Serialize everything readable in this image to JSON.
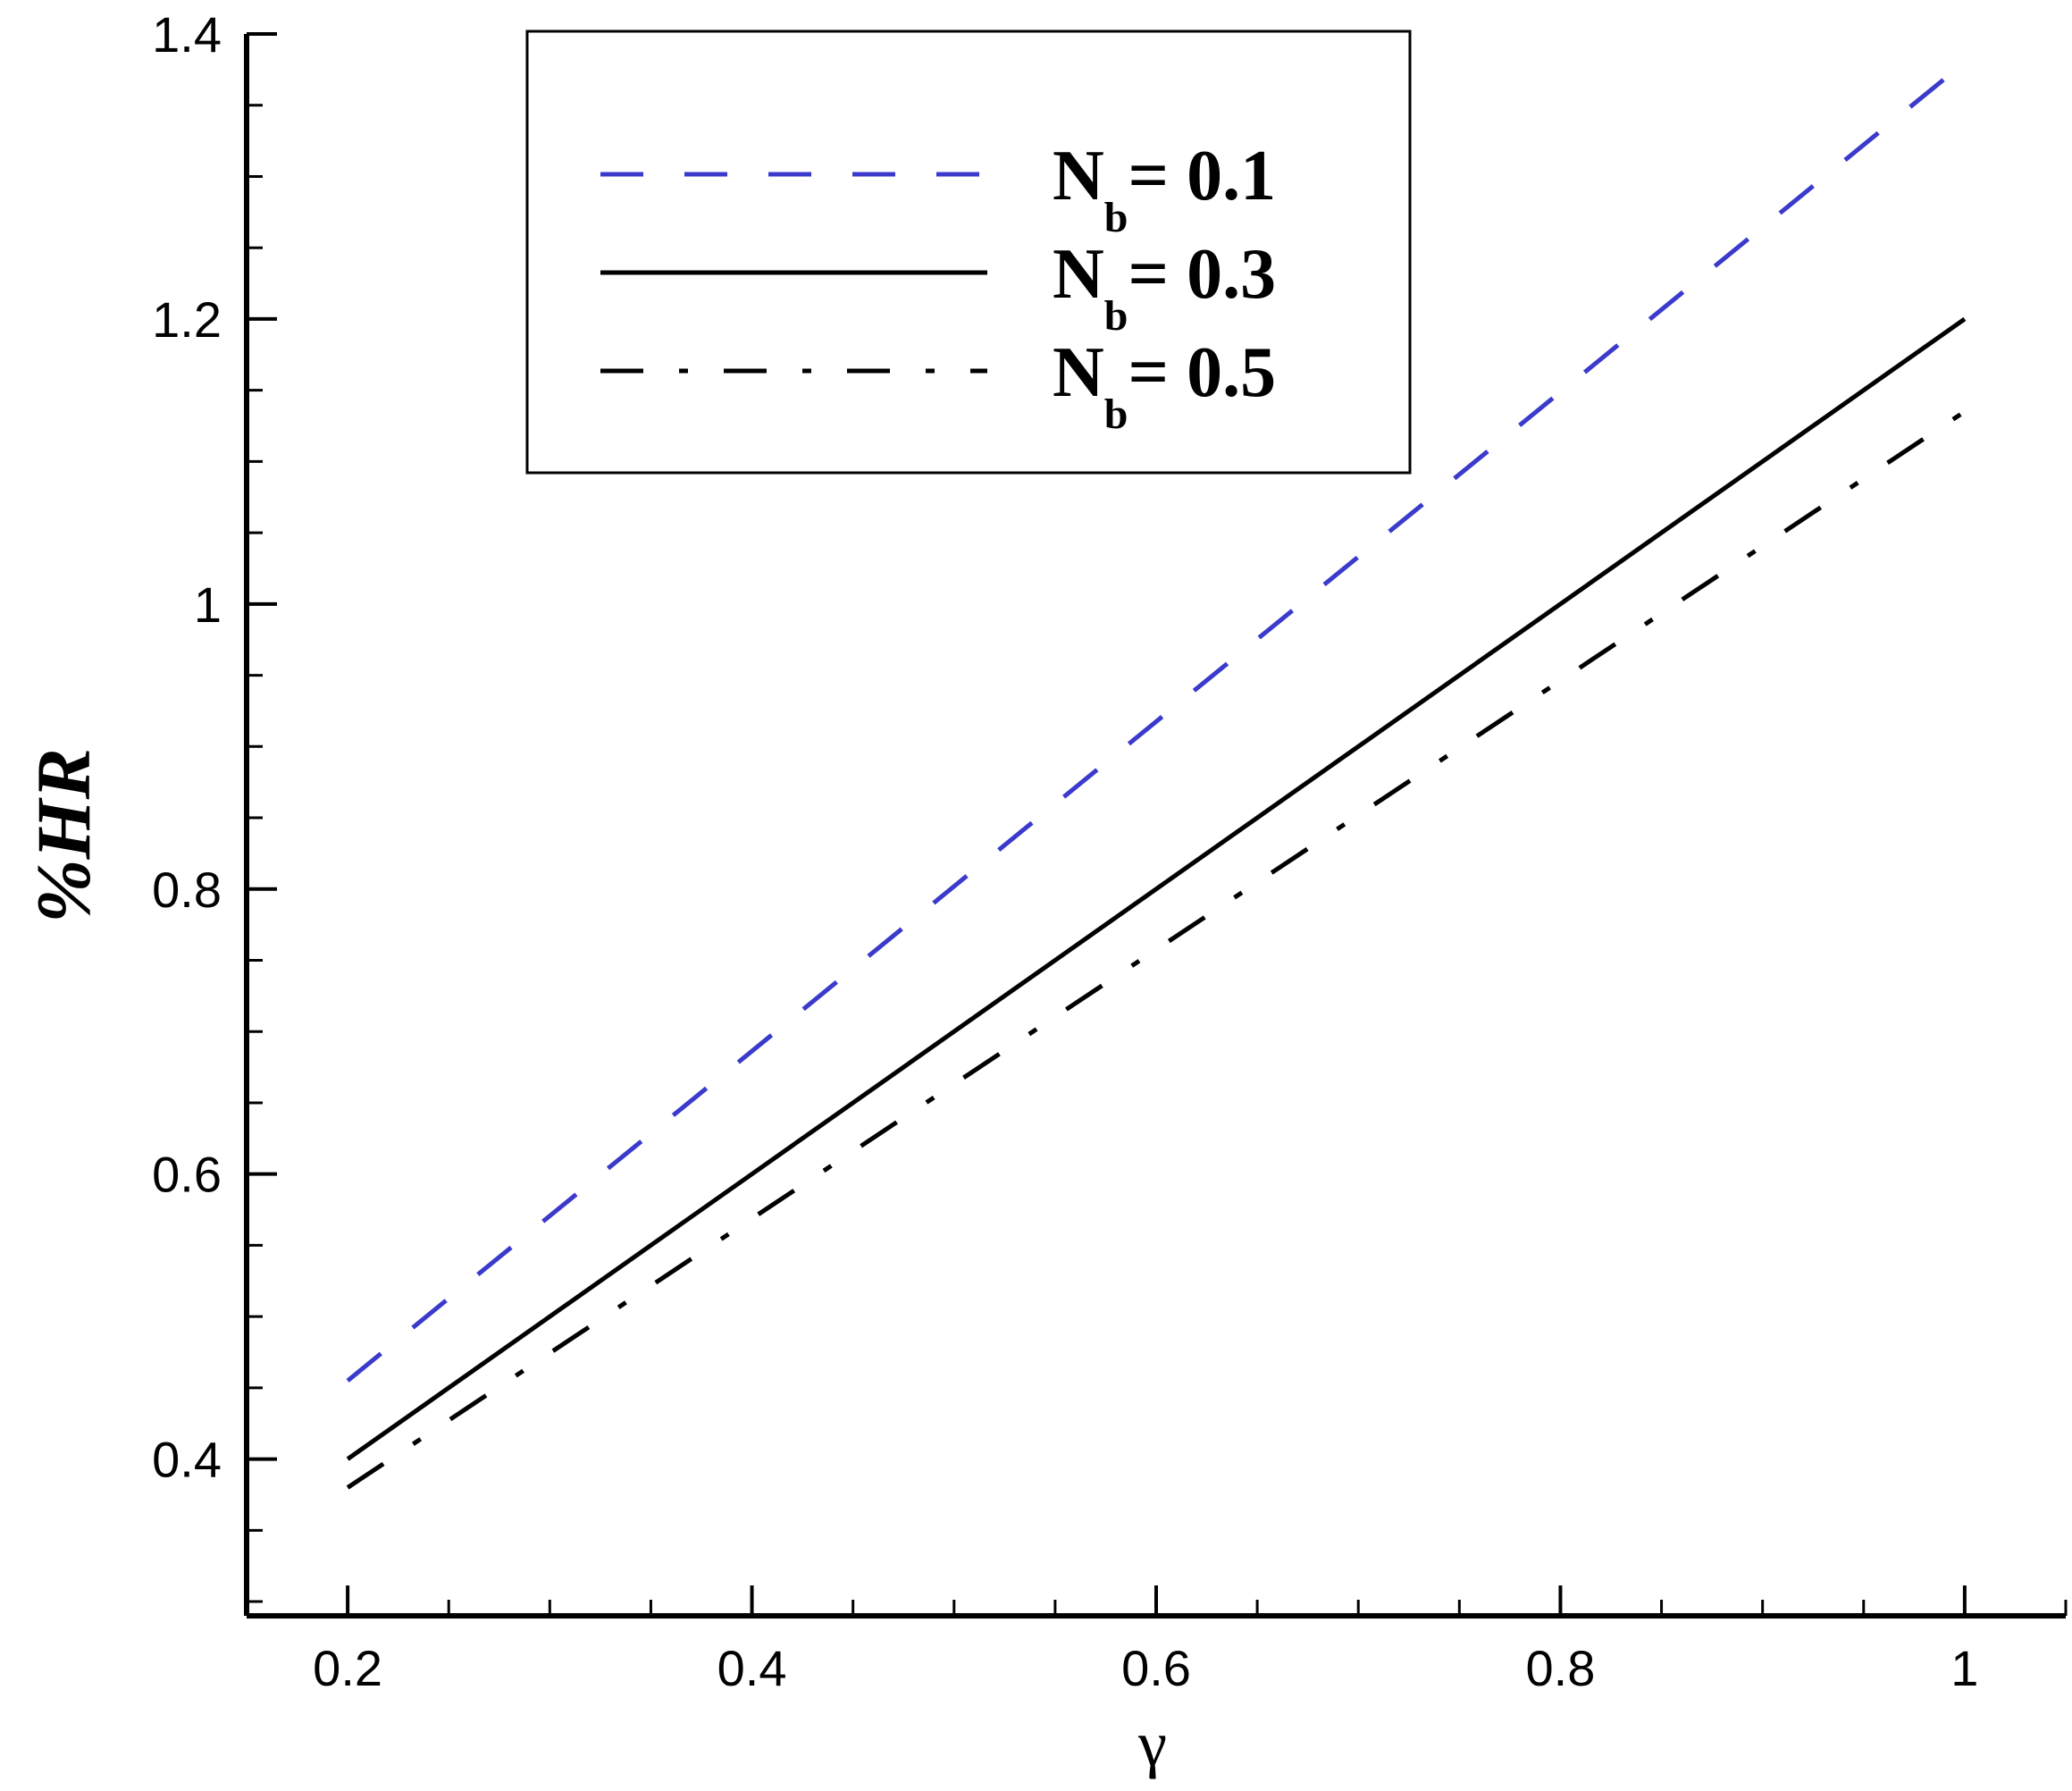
{
  "chart_data": {
    "type": "line",
    "xlabel": "γ",
    "ylabel": "%HR",
    "xlim": [
      0.15,
      1.05
    ],
    "ylim": [
      0.29,
      1.4
    ],
    "xticks": [
      0.2,
      0.4,
      0.6,
      0.8,
      1
    ],
    "xtick_labels": [
      "0.2",
      "0.4",
      "0.6",
      "0.8",
      "1"
    ],
    "yticks": [
      0.4,
      0.6,
      0.8,
      1,
      1.2,
      1.4
    ],
    "ytick_labels": [
      "0.4",
      "0.6",
      "0.8",
      "1",
      "1.2",
      "1.4"
    ],
    "grid": false,
    "legend_position": "top-center",
    "series": [
      {
        "name": "N_b= 0.1",
        "label_main": "N",
        "label_sub": "b",
        "label_rest": "= 0.1",
        "style": "dashed",
        "color": "#3a3acc",
        "x": [
          0.2,
          1.0
        ],
        "y": [
          0.455,
          1.38
        ]
      },
      {
        "name": "N_b= 0.3",
        "label_main": "N",
        "label_sub": "b",
        "label_rest": "= 0.3",
        "style": "solid",
        "color": "#000000",
        "x": [
          0.2,
          1.0
        ],
        "y": [
          0.4,
          1.2
        ]
      },
      {
        "name": "N_b= 0.5",
        "label_main": "N",
        "label_sub": "b",
        "label_rest": "= 0.5",
        "style": "dashdot",
        "color": "#000000",
        "x": [
          0.2,
          1.0
        ],
        "y": [
          0.38,
          1.135
        ]
      }
    ]
  }
}
